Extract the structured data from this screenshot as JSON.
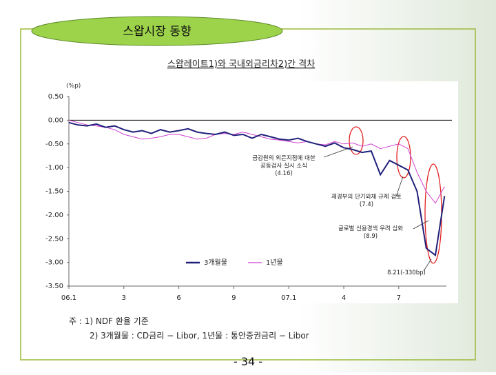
{
  "chart_data": {
    "type": "line",
    "slide_title": "스왑시장 동향",
    "title": "스왑레이트1)와 국내외금리차2)간 격차",
    "y_label": "(%p)",
    "x": [
      0,
      0.5,
      1,
      1.5,
      2,
      2.5,
      3,
      3.5,
      4,
      4.5,
      5,
      5.5,
      6,
      6.5,
      7,
      7.5,
      8,
      8.5,
      9,
      9.5,
      10,
      10.5,
      11,
      11.5,
      12,
      12.5,
      13,
      13.5,
      14,
      14.5,
      15,
      15.5,
      16,
      16.5,
      17,
      17.5,
      18,
      18.5,
      19,
      19.5,
      20,
      20.5
    ],
    "series": [
      {
        "name": "3개월물",
        "color": "#1f1f7a",
        "values": [
          -0.05,
          -0.1,
          -0.12,
          -0.08,
          -0.15,
          -0.12,
          -0.2,
          -0.25,
          -0.22,
          -0.28,
          -0.2,
          -0.25,
          -0.22,
          -0.18,
          -0.25,
          -0.28,
          -0.3,
          -0.25,
          -0.32,
          -0.3,
          -0.38,
          -0.3,
          -0.35,
          -0.4,
          -0.42,
          -0.38,
          -0.45,
          -0.5,
          -0.55,
          -0.48,
          -0.58,
          -0.62,
          -0.68,
          -0.65,
          -1.15,
          -0.85,
          -0.95,
          -1.05,
          -1.5,
          -2.7,
          -2.85,
          -1.6
        ]
      },
      {
        "name": "1년물",
        "color": "#d040d0",
        "values": [
          0,
          -0.05,
          -0.1,
          -0.12,
          -0.15,
          -0.2,
          -0.3,
          -0.35,
          -0.4,
          -0.38,
          -0.35,
          -0.3,
          -0.3,
          -0.35,
          -0.4,
          -0.38,
          -0.3,
          -0.28,
          -0.3,
          -0.25,
          -0.3,
          -0.35,
          -0.4,
          -0.42,
          -0.45,
          -0.48,
          -0.45,
          -0.5,
          -0.52,
          -0.45,
          -0.5,
          -0.48,
          -0.55,
          -0.5,
          -0.6,
          -0.55,
          -0.5,
          -0.6,
          -1.1,
          -1.5,
          -1.75,
          -1.4
        ]
      }
    ],
    "xlim": [
      0,
      20.6
    ],
    "xticks": [
      {
        "value": 0,
        "label": "06.1"
      },
      3,
      6,
      9,
      {
        "value": 12,
        "label": "07.1"
      },
      {
        "value": 15,
        "label": "4"
      },
      {
        "value": 18,
        "label": "7"
      }
    ],
    "ylim": [
      -3.5,
      0.5
    ],
    "yticks": [
      {
        "value": 0.5,
        "label": "0.50"
      },
      {
        "value": 0,
        "label": "0.00"
      },
      {
        "value": -0.5,
        "label": "-0.50"
      },
      {
        "value": -1,
        "label": "-1.00"
      },
      {
        "value": -1.5,
        "label": "-1.50"
      },
      {
        "value": -2,
        "label": "-2.00"
      },
      {
        "value": -2.5,
        "label": "-2.50"
      },
      {
        "value": -3,
        "label": "-3.00"
      },
      {
        "value": -3.5,
        "label": "-3.50"
      }
    ],
    "reference_line": 0,
    "annotations": [
      {
        "lines": [
          "금감원의 외은지점에 대한",
          "공동검사 실시 소식",
          "(4.16)"
        ]
      },
      {
        "lines": [
          "재경부의 단기외채 규제 검토",
          "(7.4)"
        ]
      },
      {
        "lines": [
          "글로벌 신용경색 우려 심화",
          "(8.9)"
        ]
      },
      {
        "lines": [
          "8.21(-330bp)"
        ]
      }
    ],
    "footnotes": [
      "주 : 1) NDF 환율 기준",
      "2) 3개월물 : CD금리 − Libor, 1년물 : 통안증권금리 − Libor"
    ],
    "page_number": "- 34 -"
  }
}
